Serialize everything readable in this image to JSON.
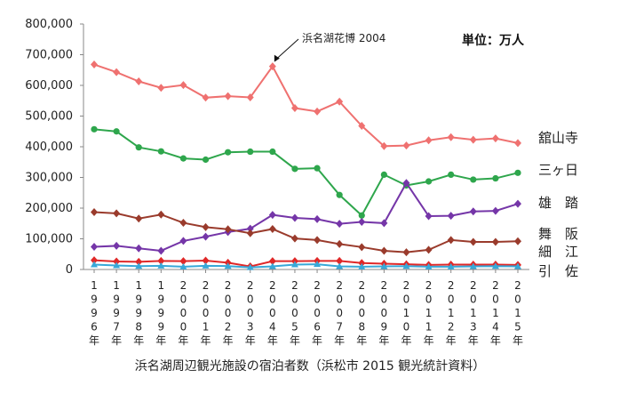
{
  "chart_data": {
    "type": "line",
    "title": "浜名湖周辺観光施設の宿泊者数（浜松市 2015 観光統計資料）",
    "unit_label": "単位：万人",
    "annotation": "浜名湖花博 2004",
    "annotation_category": "2004年",
    "categories": [
      "1996年",
      "1997年",
      "1998年",
      "1999年",
      "2000年",
      "2001年",
      "2002年",
      "2003年",
      "2004年",
      "2005年",
      "2006年",
      "2007年",
      "2008年",
      "2009年",
      "2010年",
      "2011年",
      "2012年",
      "2013年",
      "2014年",
      "2015年"
    ],
    "ylim": [
      0,
      800000
    ],
    "yticks": [
      0,
      100000,
      200000,
      300000,
      400000,
      500000,
      600000,
      700000,
      800000
    ],
    "ytick_labels": [
      "0",
      "100,000",
      "200,000",
      "300,000",
      "400,000",
      "500,000",
      "600,000",
      "700,000",
      "800,000"
    ],
    "grid": false,
    "series": [
      {
        "name": "舘山寺",
        "color": "#ef7170",
        "marker": "diamond",
        "values": [
          668000,
          643000,
          613000,
          592000,
          601000,
          560000,
          565000,
          561000,
          662000,
          526000,
          515000,
          547000,
          468000,
          402000,
          404000,
          421000,
          431000,
          423000,
          427000,
          412000
        ]
      },
      {
        "name": "三ヶ日",
        "color": "#2ea64c",
        "marker": "circle",
        "values": [
          457000,
          450000,
          398000,
          385000,
          362000,
          358000,
          382000,
          384000,
          384000,
          328000,
          330000,
          243000,
          176000,
          309000,
          274000,
          287000,
          309000,
          293000,
          297000,
          315000
        ]
      },
      {
        "name": "雄　踏",
        "color": "#7536a8",
        "marker": "diamond",
        "values": [
          74000,
          77000,
          69000,
          61000,
          93000,
          107000,
          122000,
          133000,
          178000,
          168000,
          164000,
          149000,
          155000,
          151000,
          282000,
          174000,
          175000,
          189000,
          191000,
          214000
        ]
      },
      {
        "name": "舞　阪",
        "color": "#9a3b2c",
        "marker": "diamond",
        "values": [
          187000,
          183000,
          166000,
          179000,
          152000,
          138000,
          131000,
          118000,
          132000,
          101000,
          96000,
          83000,
          73000,
          61000,
          56000,
          64000,
          96000,
          90000,
          90000,
          92000
        ]
      },
      {
        "name": "細　江",
        "color": "#e02828",
        "marker": "diamond",
        "values": [
          30000,
          26000,
          25000,
          28000,
          27000,
          29000,
          22000,
          10000,
          27000,
          27000,
          28000,
          28000,
          21000,
          19000,
          17000,
          15000,
          16000,
          16000,
          16000,
          15000
        ]
      },
      {
        "name": "引　佐",
        "color": "#38a8d8",
        "marker": "triangle",
        "values": [
          16000,
          13000,
          11000,
          12000,
          9000,
          12000,
          11000,
          7000,
          10000,
          16000,
          17000,
          10000,
          9000,
          10000,
          11000,
          9000,
          9000,
          10000,
          11000,
          10000
        ]
      }
    ]
  }
}
